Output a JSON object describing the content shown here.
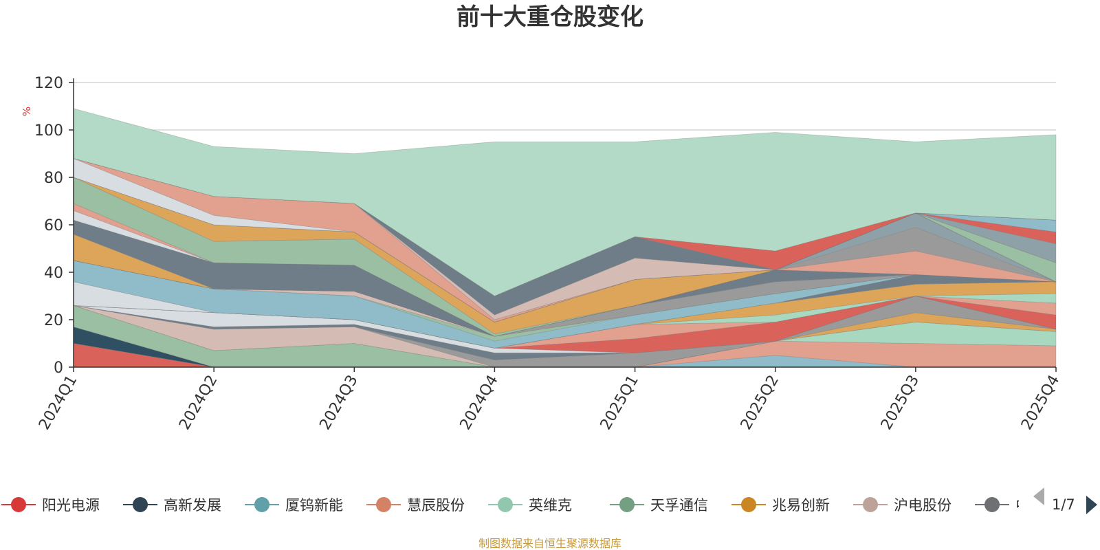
{
  "chart_data": {
    "type": "area",
    "title": "前十大重仓股变化",
    "y_unit": "%",
    "ylim": [
      0,
      120
    ],
    "y_ticks": [
      0,
      20,
      40,
      60,
      80,
      100,
      120
    ],
    "categories": [
      "2024Q1",
      "2024Q2",
      "2024Q3",
      "2024Q4",
      "2025Q1",
      "2025Q2",
      "2025Q3",
      "2025Q4"
    ],
    "grid": true,
    "legend_placement": "bottom",
    "series": [
      {
        "name": "阳光电源",
        "color": "#d9625a",
        "values": [
          10,
          0,
          0,
          0,
          0,
          0,
          0,
          0
        ]
      },
      {
        "name": "高新发展",
        "color": "#2f4f62",
        "values": [
          7,
          0,
          0,
          0,
          0,
          0,
          0,
          0
        ]
      },
      {
        "name": "厦钨新能",
        "color": "#8fbcc8",
        "values": [
          0,
          0,
          0,
          0,
          0,
          5,
          0,
          0
        ]
      },
      {
        "name": "慧辰股份",
        "color": "#e2a08e",
        "values": [
          0,
          0,
          0,
          0,
          0,
          6,
          10,
          9
        ]
      },
      {
        "name": "英维克",
        "color": "#a8d8c0",
        "values": [
          0,
          0,
          0,
          0,
          0,
          0,
          9,
          6
        ]
      },
      {
        "name": "天孚通信",
        "color": "#9bbfa2",
        "values": [
          9,
          7,
          10,
          0,
          0,
          0,
          0,
          0
        ]
      },
      {
        "name": "兆易创新",
        "color": "#dda55a",
        "values": [
          0,
          0,
          0,
          0,
          0,
          0,
          4,
          1
        ]
      },
      {
        "name": "沪电股份",
        "color": "#d4bbb4",
        "values": [
          0,
          9,
          7,
          0,
          0,
          0,
          0,
          0
        ]
      },
      {
        "name": "中际旭创",
        "color": "#9a9a9a",
        "values": [
          0,
          0,
          0,
          3,
          6,
          0,
          7,
          0
        ]
      },
      {
        "name": "",
        "color": "#6f7d88",
        "values": [
          0,
          1,
          1,
          3,
          0,
          0,
          0,
          0
        ]
      },
      {
        "name": "",
        "color": "#d8dde2",
        "values": [
          0,
          6,
          2,
          2,
          0,
          0,
          0,
          0
        ]
      },
      {
        "name": "",
        "color": "#d9625a",
        "values": [
          0,
          0,
          0,
          0,
          6,
          8,
          0,
          6
        ]
      },
      {
        "name": "",
        "color": "#e2a08e",
        "values": [
          0,
          0,
          0,
          0,
          6,
          0,
          0,
          5
        ]
      },
      {
        "name": "",
        "color": "#a8d8c0",
        "values": [
          0,
          0,
          0,
          0,
          0,
          3,
          0,
          4
        ]
      },
      {
        "name": "",
        "color": "#dda55a",
        "values": [
          0,
          0,
          0,
          0,
          0,
          5,
          5,
          5
        ]
      },
      {
        "name": "",
        "color": "#6f7d88",
        "values": [
          0,
          0,
          0,
          0,
          0,
          0,
          4,
          0
        ]
      },
      {
        "name": "",
        "color": "#d8dde2",
        "values": [
          10,
          0,
          0,
          0,
          0,
          0,
          0,
          0
        ]
      },
      {
        "name": "",
        "color": "#8fbcc8",
        "values": [
          9,
          10,
          10,
          3,
          4,
          4,
          0,
          0
        ]
      },
      {
        "name": "",
        "color": "#9bbfa2",
        "values": [
          0,
          0,
          0,
          2,
          0,
          0,
          0,
          0
        ]
      },
      {
        "name": "",
        "color": "#d4bbb4",
        "values": [
          0,
          0,
          2,
          0,
          0,
          0,
          0,
          0
        ]
      },
      {
        "name": "",
        "color": "#9a9a9a",
        "values": [
          0,
          0,
          0,
          0,
          4,
          5,
          0,
          0
        ]
      },
      {
        "name": "",
        "color": "#6f7d88",
        "values": [
          0,
          0,
          0,
          0,
          0,
          5,
          0,
          0
        ]
      },
      {
        "name": "",
        "color": "#e2a08e",
        "values": [
          0,
          0,
          0,
          0,
          0,
          0,
          10,
          0
        ]
      },
      {
        "name": "",
        "color": "#9a9a9a",
        "values": [
          0,
          0,
          0,
          0,
          0,
          0,
          10,
          0
        ]
      },
      {
        "name": "",
        "color": "#8fa1a8",
        "values": [
          0,
          0,
          0,
          0,
          0,
          0,
          6,
          0
        ]
      },
      {
        "name": "",
        "color": "#dda55a",
        "values": [
          11,
          0,
          0,
          0,
          0,
          0,
          0,
          0
        ]
      },
      {
        "name": "",
        "color": "#6f7d88",
        "values": [
          6,
          11,
          11,
          0,
          0,
          0,
          0,
          0
        ]
      },
      {
        "name": "",
        "color": "#d8dde2",
        "values": [
          4,
          0,
          0,
          0,
          0,
          0,
          0,
          0
        ]
      },
      {
        "name": "",
        "color": "#e2a08e",
        "values": [
          3,
          0,
          0,
          0,
          0,
          0,
          0,
          0
        ]
      },
      {
        "name": "",
        "color": "#9bbfa2",
        "values": [
          11,
          9,
          11,
          1,
          0,
          0,
          0,
          8
        ]
      },
      {
        "name": "",
        "color": "#dda55a",
        "values": [
          0,
          7,
          3,
          5,
          11,
          0,
          0,
          0
        ]
      },
      {
        "name": "",
        "color": "#8fa1a8",
        "values": [
          0,
          0,
          0,
          0,
          0,
          0,
          0,
          8
        ]
      },
      {
        "name": "",
        "color": "#d9625a",
        "values": [
          0,
          0,
          0,
          0,
          0,
          0,
          0,
          5
        ]
      },
      {
        "name": "",
        "color": "#8fbcc8",
        "values": [
          0,
          0,
          0,
          0,
          0,
          0,
          0,
          5
        ]
      },
      {
        "name": "",
        "color": "#d8dde2",
        "values": [
          8,
          4,
          0,
          0,
          0,
          0,
          0,
          0
        ]
      },
      {
        "name": "",
        "color": "#e2a08e",
        "values": [
          0,
          8,
          12,
          1,
          0,
          0,
          0,
          0
        ]
      },
      {
        "name": "",
        "color": "#d4bbb4",
        "values": [
          0,
          0,
          0,
          2,
          9,
          0,
          0,
          0
        ]
      },
      {
        "name": "",
        "color": "#6f7d88",
        "values": [
          0,
          0,
          0,
          8,
          9,
          0,
          0,
          0
        ]
      },
      {
        "name": "",
        "color": "#d9625a",
        "values": [
          0,
          0,
          0,
          0,
          0,
          8,
          0,
          0
        ]
      },
      {
        "name": "",
        "color": "#b2dac6",
        "values": [
          21,
          21,
          21,
          65,
          40,
          50,
          30,
          36
        ]
      }
    ]
  },
  "legend": {
    "items": [
      {
        "label": "阳光电源",
        "color": "#d73838"
      },
      {
        "label": "高新发展",
        "color": "#2f4554"
      },
      {
        "label": "厦钨新能",
        "color": "#61a0a8"
      },
      {
        "label": "慧辰股份",
        "color": "#d48265"
      },
      {
        "label": "英维克",
        "color": "#91c7ae"
      },
      {
        "label": "天孚通信",
        "color": "#749f83"
      },
      {
        "label": "兆易创新",
        "color": "#ca8622"
      },
      {
        "label": "沪电股份",
        "color": "#bda29a"
      },
      {
        "label": "中",
        "color": "#6e7074"
      }
    ],
    "page_indicator": "1/7"
  },
  "source_note": "制图数据来自恒生聚源数据库"
}
